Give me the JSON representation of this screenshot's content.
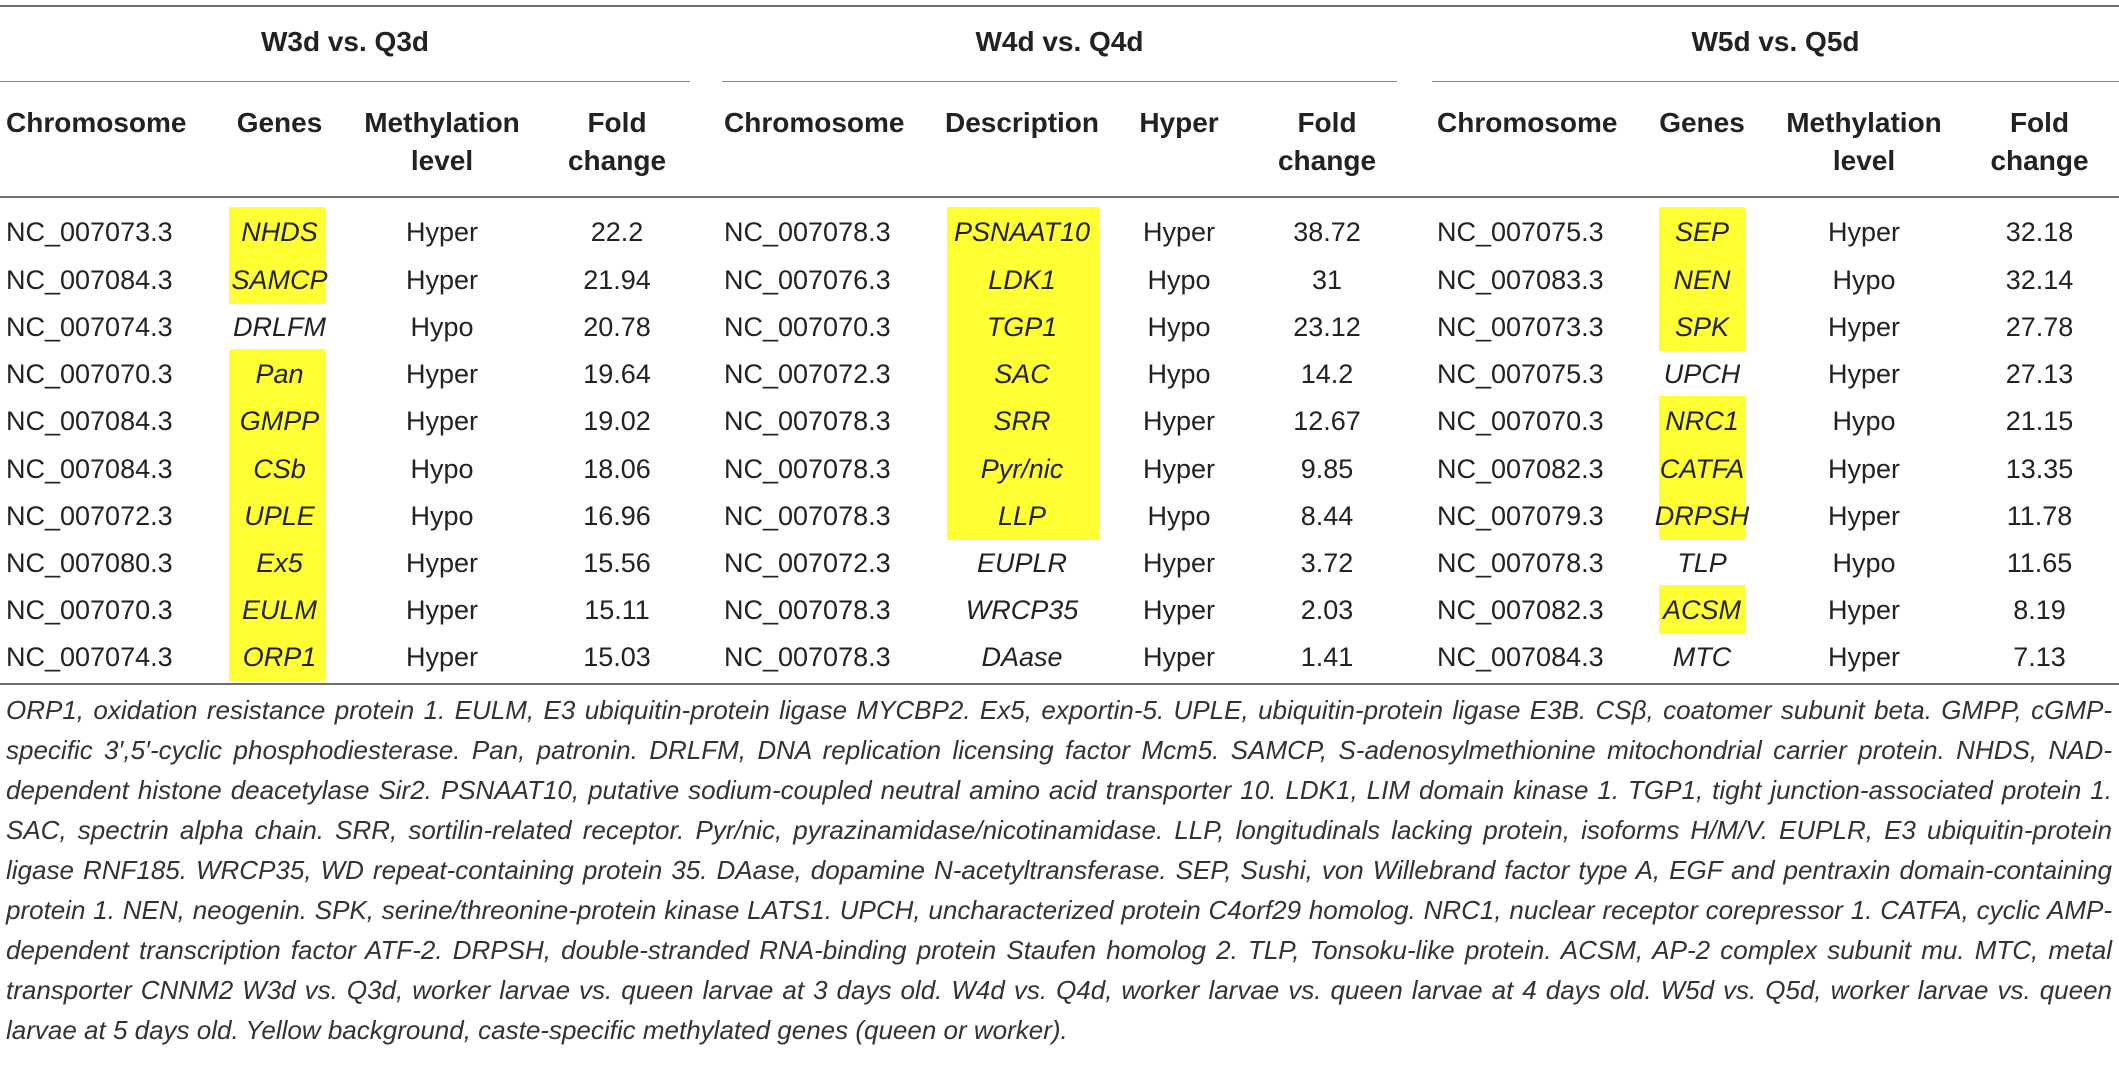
{
  "groups": [
    {
      "title": "W3d vs. Q3d",
      "headers": [
        "Chromosome",
        "Genes",
        "Methylation level",
        "Fold change"
      ],
      "rows": [
        {
          "chromosome": "NC_007073.3",
          "gene": "NHDS",
          "highlight": true,
          "level": "Hyper",
          "fold": "22.2"
        },
        {
          "chromosome": "NC_007084.3",
          "gene": "SAMCP",
          "highlight": true,
          "level": "Hyper",
          "fold": "21.94"
        },
        {
          "chromosome": "NC_007074.3",
          "gene": "DRLFM",
          "highlight": false,
          "level": "Hypo",
          "fold": "20.78"
        },
        {
          "chromosome": "NC_007070.3",
          "gene": "Pan",
          "highlight": true,
          "level": "Hyper",
          "fold": "19.64"
        },
        {
          "chromosome": "NC_007084.3",
          "gene": "GMPP",
          "highlight": true,
          "level": "Hyper",
          "fold": "19.02"
        },
        {
          "chromosome": "NC_007084.3",
          "gene": "CSb",
          "highlight": true,
          "level": "Hypo",
          "fold": "18.06"
        },
        {
          "chromosome": "NC_007072.3",
          "gene": "UPLE",
          "highlight": true,
          "level": "Hypo",
          "fold": "16.96"
        },
        {
          "chromosome": "NC_007080.3",
          "gene": "Ex5",
          "highlight": true,
          "level": "Hyper",
          "fold": "15.56"
        },
        {
          "chromosome": "NC_007070.3",
          "gene": "EULM",
          "highlight": true,
          "level": "Hyper",
          "fold": "15.11"
        },
        {
          "chromosome": "NC_007074.3",
          "gene": "ORP1",
          "highlight": true,
          "level": "Hyper",
          "fold": "15.03"
        }
      ]
    },
    {
      "title": "W4d vs. Q4d",
      "headers": [
        "Chromosome",
        "Description",
        "Hyper",
        "Fold change"
      ],
      "rows": [
        {
          "chromosome": "NC_007078.3",
          "gene": "PSNAAT10",
          "highlight": true,
          "level": "Hyper",
          "fold": "38.72"
        },
        {
          "chromosome": "NC_007076.3",
          "gene": "LDK1",
          "highlight": true,
          "level": "Hypo",
          "fold": "31"
        },
        {
          "chromosome": "NC_007070.3",
          "gene": "TGP1",
          "highlight": true,
          "level": "Hypo",
          "fold": "23.12"
        },
        {
          "chromosome": "NC_007072.3",
          "gene": "SAC",
          "highlight": true,
          "level": "Hypo",
          "fold": "14.2"
        },
        {
          "chromosome": "NC_007078.3",
          "gene": "SRR",
          "highlight": true,
          "level": "Hyper",
          "fold": "12.67"
        },
        {
          "chromosome": "NC_007078.3",
          "gene": "Pyr/nic",
          "highlight": true,
          "level": "Hyper",
          "fold": "9.85"
        },
        {
          "chromosome": "NC_007078.3",
          "gene": "LLP",
          "highlight": true,
          "level": "Hypo",
          "fold": "8.44"
        },
        {
          "chromosome": "NC_007072.3",
          "gene": "EUPLR",
          "highlight": false,
          "level": "Hyper",
          "fold": "3.72"
        },
        {
          "chromosome": "NC_007078.3",
          "gene": "WRCP35",
          "highlight": false,
          "level": "Hyper",
          "fold": "2.03"
        },
        {
          "chromosome": "NC_007078.3",
          "gene": "DAase",
          "highlight": false,
          "level": "Hyper",
          "fold": "1.41"
        }
      ]
    },
    {
      "title": "W5d vs. Q5d",
      "headers": [
        "Chromosome",
        "Genes",
        "Methylation level",
        "Fold change"
      ],
      "rows": [
        {
          "chromosome": "NC_007075.3",
          "gene": "SEP",
          "highlight": true,
          "level": "Hyper",
          "fold": "32.18"
        },
        {
          "chromosome": "NC_007083.3",
          "gene": "NEN",
          "highlight": true,
          "level": "Hypo",
          "fold": "32.14"
        },
        {
          "chromosome": "NC_007073.3",
          "gene": "SPK",
          "highlight": true,
          "level": "Hyper",
          "fold": "27.78"
        },
        {
          "chromosome": "NC_007075.3",
          "gene": "UPCH",
          "highlight": false,
          "level": "Hyper",
          "fold": "27.13"
        },
        {
          "chromosome": "NC_007070.3",
          "gene": "NRC1",
          "highlight": true,
          "level": "Hypo",
          "fold": "21.15"
        },
        {
          "chromosome": "NC_007082.3",
          "gene": "CATFA",
          "highlight": true,
          "level": "Hyper",
          "fold": "13.35"
        },
        {
          "chromosome": "NC_007079.3",
          "gene": "DRPSH",
          "highlight": true,
          "level": "Hyper",
          "fold": "11.78"
        },
        {
          "chromosome": "NC_007078.3",
          "gene": "TLP",
          "highlight": false,
          "level": "Hypo",
          "fold": "11.65"
        },
        {
          "chromosome": "NC_007082.3",
          "gene": "ACSM",
          "highlight": true,
          "level": "Hyper",
          "fold": "8.19"
        },
        {
          "chromosome": "NC_007084.3",
          "gene": "MTC",
          "highlight": false,
          "level": "Hyper",
          "fold": "7.13"
        }
      ]
    }
  ],
  "caption": "ORP1, oxidation resistance protein 1. EULM, E3 ubiquitin-protein ligase MYCBP2. Ex5, exportin-5. UPLE, ubiquitin-protein ligase E3B. CSβ, coatomer subunit beta. GMPP, cGMP-specific 3′,5′-cyclic phosphodiesterase. Pan, patronin. DRLFM, DNA replication licensing factor Mcm5. SAMCP, S-adenosylmethionine mitochondrial carrier protein. NHDS, NAD-dependent histone deacetylase Sir2. PSNAAT10, putative sodium-coupled neutral amino acid transporter 10. LDK1, LIM domain kinase 1. TGP1, tight junction-associated protein 1. SAC, spectrin alpha chain. SRR, sortilin-related receptor. Pyr/nic, pyrazinamidase/nicotinamidase. LLP, longitudinals lacking protein, isoforms H/M/V. EUPLR, E3 ubiquitin-protein ligase RNF185. WRCP35, WD repeat-containing protein 35. DAase, dopamine N-acetyltransferase. SEP, Sushi, von Willebrand factor type A, EGF and pentraxin domain-containing protein 1. NEN, neogenin. SPK, serine/threonine-protein kinase LATS1. UPCH, uncharacterized protein C4orf29 homolog. NRC1, nuclear receptor corepressor 1. CATFA, cyclic AMP-dependent transcription factor ATF-2. DRPSH, double-stranded RNA-binding protein Staufen homolog 2. TLP, Tonsoku-like protein. ACSM, AP-2 complex subunit mu. MTC, metal transporter CNNM2 W3d vs. Q3d, worker larvae vs. queen larvae at 3 days old. W4d vs. Q4d, worker larvae vs. queen larvae at 4 days old. W5d vs. Q5d, worker larvae vs. queen larvae at 5 days old. Yellow background, caste-specific methylated genes (queen or worker).",
  "colors": {
    "highlight": "#ffff33",
    "rule": "#6f6f6f",
    "text": "#222222"
  }
}
